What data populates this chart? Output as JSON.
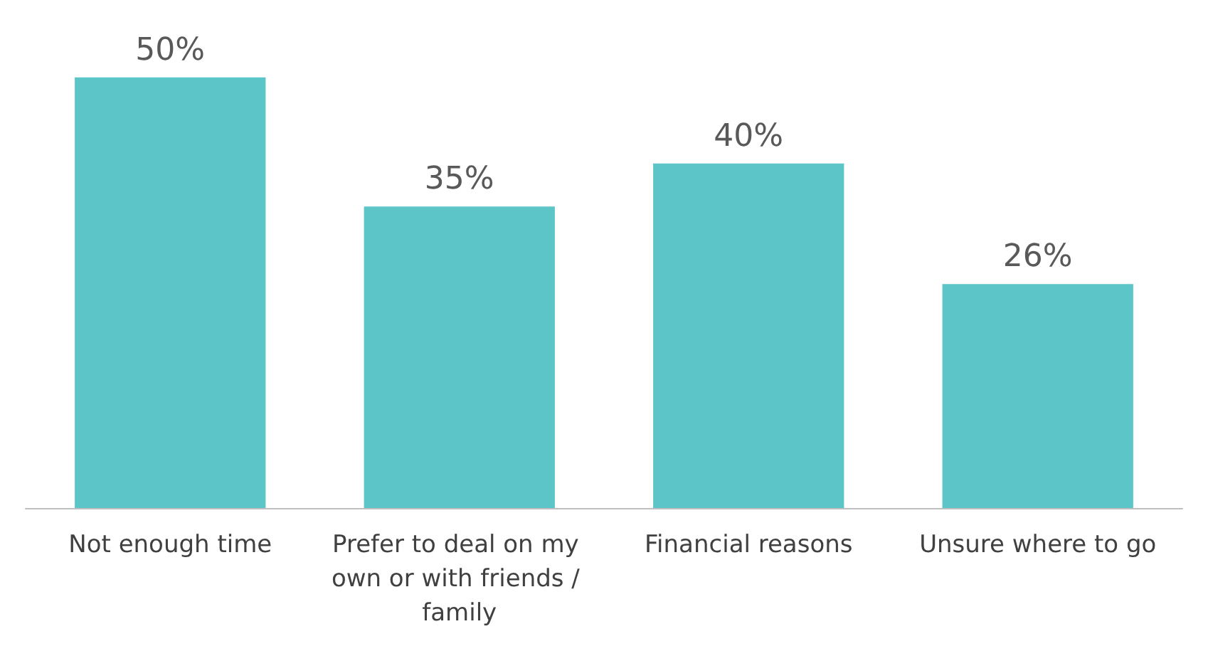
{
  "chart_data": {
    "type": "bar",
    "categories": [
      "Not enough time",
      "Prefer to deal on my own or with friends / family",
      "Financial reasons",
      "Unsure where to go"
    ],
    "values": [
      50,
      35,
      40,
      26
    ],
    "value_labels": [
      "50%",
      "35%",
      "40%",
      "26%"
    ],
    "color": "#5bc5c8"
  }
}
